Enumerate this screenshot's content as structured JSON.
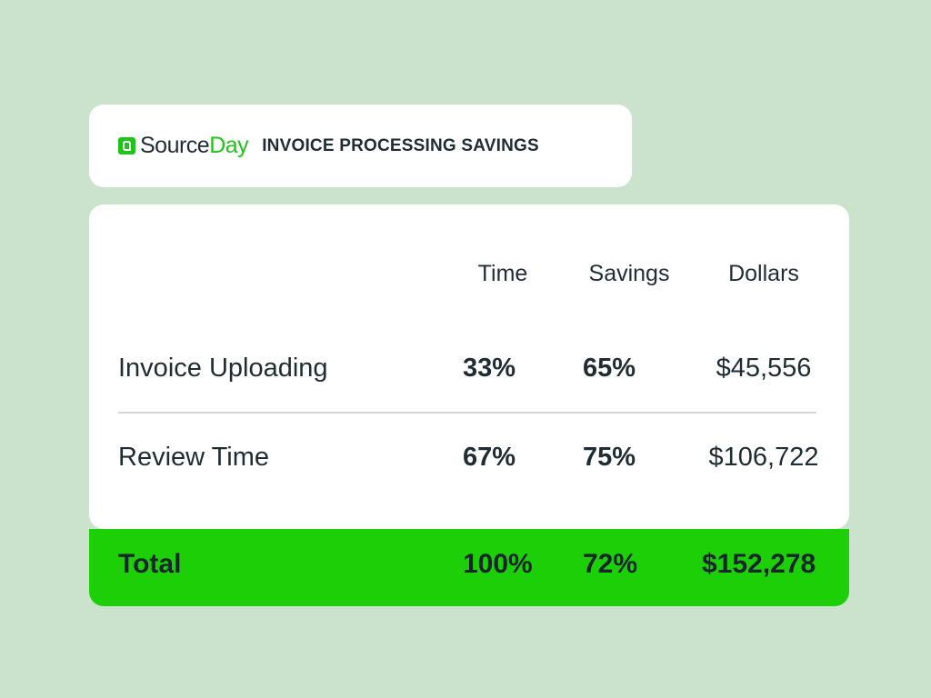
{
  "brand": {
    "logo_text_1": "Source",
    "logo_text_2": "Day",
    "accent_color": "#1fc41b",
    "logo_icon": "sourceday-logo-icon"
  },
  "header": {
    "title": "INVOICE PROCESSING SAVINGS"
  },
  "table": {
    "columns": [
      "Time",
      "Savings",
      "Dollars"
    ],
    "rows": [
      {
        "label": "Invoice Uploading",
        "time": "33%",
        "savings": "65%",
        "dollars": "$45,556"
      },
      {
        "label": "Review Time",
        "time": "67%",
        "savings": "75%",
        "dollars": "$106,722"
      }
    ],
    "total": {
      "label": "Total",
      "time": "100%",
      "savings": "72%",
      "dollars": "$152,278"
    }
  },
  "colors": {
    "background": "#cbe3cc",
    "total_bar": "#1ccf07",
    "text": "#1f2d33"
  }
}
